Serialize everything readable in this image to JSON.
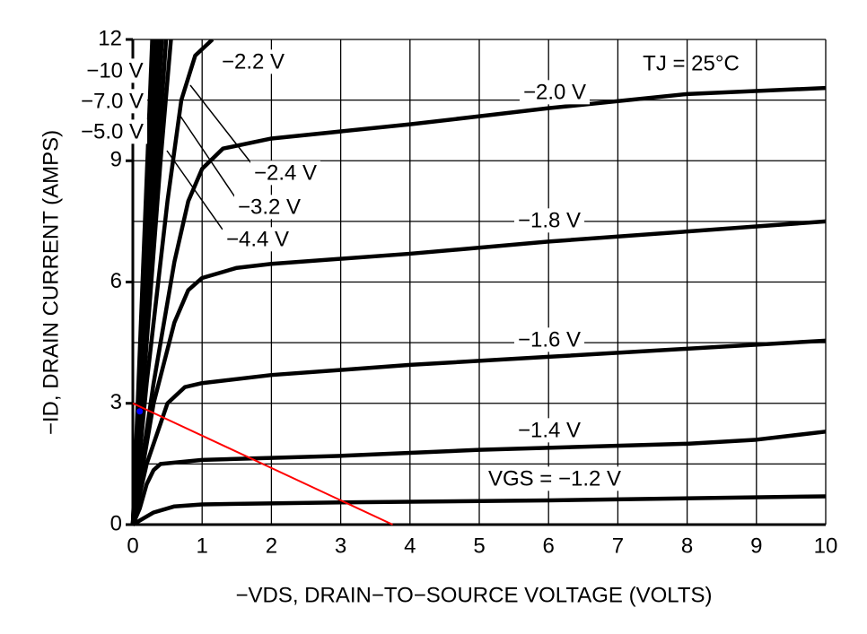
{
  "chart_data": {
    "type": "line",
    "xlabel": "−VDS, DRAIN−TO−SOURCE VOLTAGE (VOLTS)",
    "ylabel": "−ID, DRAIN CURRENT (AMPS)",
    "annotation": "TJ = 25°C",
    "xlim": [
      0,
      10
    ],
    "ylim": [
      0,
      12
    ],
    "xticks": [
      0,
      1,
      2,
      3,
      4,
      5,
      6,
      7,
      8,
      9,
      10
    ],
    "yticks": [
      0,
      3,
      6,
      9,
      12
    ],
    "ygrid": [
      1.5,
      4.5,
      7.5,
      10.5
    ],
    "grid": true,
    "series": [
      {
        "name": "VGS = −1.2 V",
        "color": "#000000",
        "x": [
          0,
          0.15,
          0.3,
          0.6,
          1,
          3,
          6,
          10
        ],
        "values": [
          0,
          0.15,
          0.3,
          0.45,
          0.5,
          0.55,
          0.6,
          0.7
        ]
      },
      {
        "name": "−1.4 V",
        "color": "#000000",
        "x": [
          0,
          0.1,
          0.2,
          0.3,
          0.4,
          1,
          3,
          5,
          8,
          9,
          10
        ],
        "values": [
          0,
          0.4,
          1.0,
          1.35,
          1.5,
          1.6,
          1.7,
          1.85,
          2.0,
          2.1,
          2.3
        ]
      },
      {
        "name": "−1.6 V",
        "color": "#000000",
        "x": [
          0,
          0.2,
          0.5,
          0.75,
          1,
          2,
          4,
          6,
          8,
          10
        ],
        "values": [
          0,
          1.5,
          3.0,
          3.4,
          3.5,
          3.7,
          3.95,
          4.15,
          4.35,
          4.55
        ]
      },
      {
        "name": "−1.8 V",
        "color": "#000000",
        "x": [
          0,
          0.3,
          0.6,
          0.8,
          1,
          1.5,
          2,
          4,
          6,
          8,
          10
        ],
        "values": [
          0,
          3.0,
          5.0,
          5.8,
          6.1,
          6.35,
          6.45,
          6.7,
          7.0,
          7.25,
          7.5
        ]
      },
      {
        "name": "−2.0 V",
        "color": "#000000",
        "x": [
          0,
          0.3,
          0.6,
          0.8,
          1,
          1.3,
          2,
          4,
          6,
          8,
          10
        ],
        "values": [
          0,
          3.5,
          6.5,
          8.0,
          8.8,
          9.3,
          9.55,
          9.9,
          10.3,
          10.65,
          10.8
        ]
      },
      {
        "name": "−2.2 V",
        "color": "#000000",
        "x": [
          0,
          0.2,
          0.5,
          0.7,
          0.9,
          1.15
        ],
        "values": [
          0,
          3.5,
          8.0,
          10.5,
          11.6,
          12
        ]
      },
      {
        "name": "−2.4 V",
        "color": "#000000",
        "x": [
          0,
          0.2,
          0.4,
          0.55
        ],
        "values": [
          0,
          4.5,
          9.0,
          12
        ]
      },
      {
        "name": "−3.2 V",
        "color": "#000000",
        "x": [
          0,
          0.48
        ],
        "values": [
          0,
          12
        ]
      },
      {
        "name": "−4.4 V",
        "color": "#000000",
        "x": [
          0,
          0.42
        ],
        "values": [
          0,
          12
        ]
      },
      {
        "name": "−5.0 V",
        "color": "#000000",
        "x": [
          0,
          0.37
        ],
        "values": [
          0,
          12
        ]
      },
      {
        "name": "−7.0 V",
        "color": "#000000",
        "x": [
          0,
          0.32
        ],
        "values": [
          0,
          12
        ]
      },
      {
        "name": "−10 V",
        "color": "#000000",
        "x": [
          0,
          0.28
        ],
        "values": [
          0,
          12
        ]
      }
    ],
    "load_line": {
      "color": "#ff0000",
      "x": [
        0,
        3.75
      ],
      "values": [
        3,
        0
      ]
    },
    "point": {
      "color": "#0000ff",
      "x": 0.1,
      "value": 2.8
    }
  }
}
